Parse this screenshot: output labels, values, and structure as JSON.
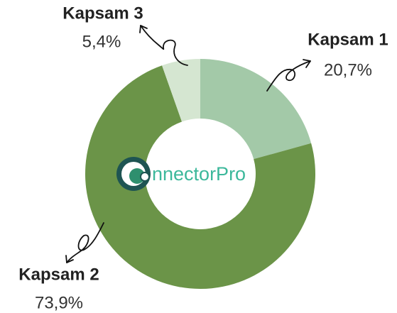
{
  "chart_data": {
    "type": "pie",
    "categories": [
      "Kapsam 1",
      "Kapsam 2",
      "Kapsam 3"
    ],
    "values": [
      20.7,
      73.9,
      5.4
    ],
    "value_labels": [
      "20,7%",
      "73,9%",
      "5,4%"
    ],
    "colors": [
      "#a3c9a8",
      "#6b9448",
      "#d5e6d1"
    ],
    "donut": true,
    "watermark": "nnectorPro"
  }
}
